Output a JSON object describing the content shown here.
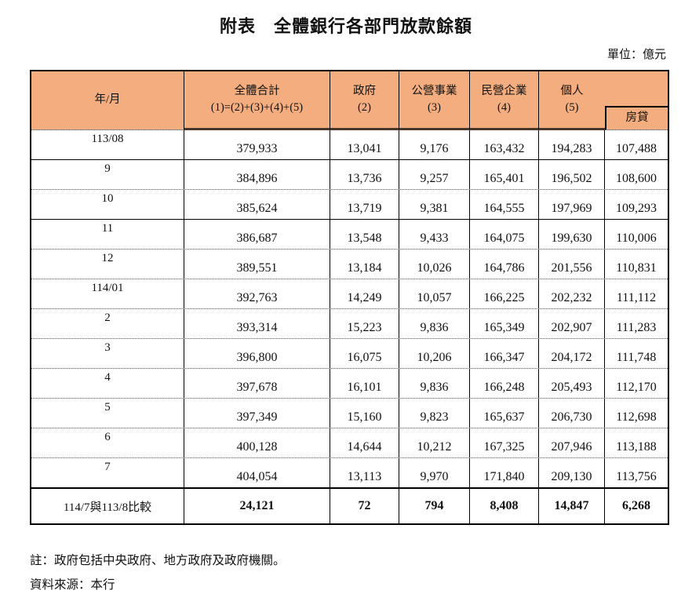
{
  "title": "附表　全體銀行各部門放款餘額",
  "unit_label": "單位：億元",
  "colors": {
    "header_bg": "#F3AD7E",
    "header_underline": "#4a372b",
    "border": "#000000"
  },
  "table": {
    "headers": {
      "year_month": "年/月",
      "total_l1": "全體合計",
      "total_l2": "(1)=(2)+(3)+(4)+(5)",
      "government_l1": "政府",
      "government_l2": "(2)",
      "public_l1": "公營事業",
      "public_l2": "(3)",
      "private_l1": "民營企業",
      "private_l2": "(4)",
      "individual_l1": "個人",
      "individual_l2": "(5)",
      "mortgage": "房貸"
    },
    "rows": [
      [
        "113/08",
        "379,933",
        "13,041",
        "9,176",
        "163,432",
        "194,283",
        "107,488"
      ],
      [
        "9",
        "384,896",
        "13,736",
        "9,257",
        "165,401",
        "196,502",
        "108,600"
      ],
      [
        "10",
        "385,624",
        "13,719",
        "9,381",
        "164,555",
        "197,969",
        "109,293"
      ],
      [
        "11",
        "386,687",
        "13,548",
        "9,433",
        "164,075",
        "199,630",
        "110,006"
      ],
      [
        "12",
        "389,551",
        "13,184",
        "10,026",
        "164,786",
        "201,556",
        "110,831"
      ],
      [
        "114/01",
        "392,763",
        "14,249",
        "10,057",
        "166,225",
        "202,232",
        "111,112"
      ],
      [
        "2",
        "393,314",
        "15,223",
        "9,836",
        "165,349",
        "202,907",
        "111,283"
      ],
      [
        "3",
        "396,800",
        "16,075",
        "10,206",
        "166,347",
        "204,172",
        "111,748"
      ],
      [
        "4",
        "397,678",
        "16,101",
        "9,836",
        "166,248",
        "205,493",
        "112,170"
      ],
      [
        "5",
        "397,349",
        "15,160",
        "9,823",
        "165,637",
        "206,730",
        "112,698"
      ],
      [
        "6",
        "400,128",
        "14,644",
        "10,212",
        "167,325",
        "207,946",
        "113,188"
      ],
      [
        "7",
        "404,054",
        "13,113",
        "9,970",
        "171,840",
        "209,130",
        "113,756"
      ]
    ],
    "comparison": [
      "114/7與113/8比較",
      "24,121",
      "72",
      "794",
      "8,408",
      "14,847",
      "6,268"
    ]
  },
  "notes": [
    "註：政府包括中央政府、地方政府及政府機關。",
    "資料來源：本行"
  ]
}
